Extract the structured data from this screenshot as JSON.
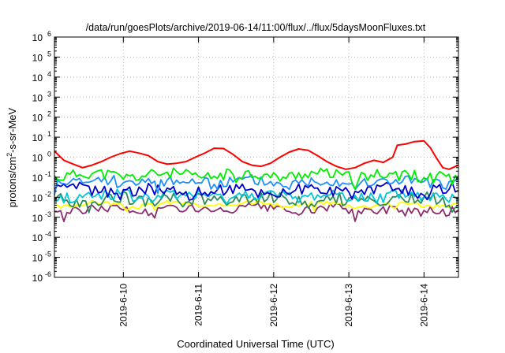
{
  "chart_data": {
    "type": "line",
    "title": "/data/run/goesPlots/archive/2019-06-14/11:00/flux/../flux/5daysMoonFluxes.txt",
    "xlabel": "Coordinated Universal Time (UTC)",
    "ylabel": "protons/cm2-s-sr-MeV",
    "ylabel_parts": {
      "pre": "protons/cm",
      "sup": "2",
      "post": "-s-sr-MeV"
    },
    "yscale": "log",
    "ylim": [
      1e-06,
      1000000.0
    ],
    "y_ticks": [
      {
        "base": "10",
        "exp": "-6"
      },
      {
        "base": "10",
        "exp": "-5"
      },
      {
        "base": "10",
        "exp": "-4"
      },
      {
        "base": "10",
        "exp": "-3"
      },
      {
        "base": "10",
        "exp": "-2"
      },
      {
        "base": "10",
        "exp": "-1"
      },
      {
        "base": "10",
        "exp": "0"
      },
      {
        "base": "10",
        "exp": "1"
      },
      {
        "base": "10",
        "exp": "2"
      },
      {
        "base": "10",
        "exp": "3"
      },
      {
        "base": "10",
        "exp": "4"
      },
      {
        "base": "10",
        "exp": "5"
      },
      {
        "base": "10",
        "exp": "6"
      }
    ],
    "xlim": [
      "2019-06-09 02:00",
      "2019-06-14 11:00"
    ],
    "x_ticks": [
      "2019-6-10",
      "2019-6-11",
      "2019-6-12",
      "2019-6-13",
      "2019-6-14"
    ],
    "grid": true,
    "legend": "none",
    "series": [
      {
        "color": "#ff0000",
        "points": [
          [
            "2019-06-09 02:00",
            2.0
          ],
          [
            "2019-06-09 05:00",
            0.7
          ],
          [
            "2019-06-09 08:00",
            0.45
          ],
          [
            "2019-06-09 11:00",
            0.3
          ],
          [
            "2019-06-09 14:00",
            0.4
          ],
          [
            "2019-06-09 17:00",
            0.6
          ],
          [
            "2019-06-09 20:00",
            1.0
          ],
          [
            "2019-06-09 23:00",
            1.5
          ],
          [
            "2019-06-10 02:00",
            2.0
          ],
          [
            "2019-06-10 05:00",
            1.6
          ],
          [
            "2019-06-10 08:00",
            1.2
          ],
          [
            "2019-06-10 11:00",
            0.6
          ],
          [
            "2019-06-10 14:00",
            0.45
          ],
          [
            "2019-06-10 17:00",
            0.5
          ],
          [
            "2019-06-10 20:00",
            0.6
          ],
          [
            "2019-06-10 23:00",
            1.0
          ],
          [
            "2019-06-11 02:00",
            1.6
          ],
          [
            "2019-06-11 05:00",
            2.8
          ],
          [
            "2019-06-11 08:00",
            2.7
          ],
          [
            "2019-06-11 11:00",
            1.4
          ],
          [
            "2019-06-11 14:00",
            0.6
          ],
          [
            "2019-06-11 17:00",
            0.4
          ],
          [
            "2019-06-11 20:00",
            0.35
          ],
          [
            "2019-06-11 23:00",
            0.5
          ],
          [
            "2019-06-12 02:00",
            1.0
          ],
          [
            "2019-06-12 05:00",
            1.8
          ],
          [
            "2019-06-12 08:00",
            2.6
          ],
          [
            "2019-06-12 11:00",
            2.2
          ],
          [
            "2019-06-12 14:00",
            1.2
          ],
          [
            "2019-06-12 17:00",
            0.6
          ],
          [
            "2019-06-12 20:00",
            0.35
          ],
          [
            "2019-06-12 23:00",
            0.25
          ],
          [
            "2019-06-13 02:00",
            0.3
          ],
          [
            "2019-06-13 05:00",
            0.5
          ],
          [
            "2019-06-13 08:00",
            0.7
          ],
          [
            "2019-06-13 11:00",
            0.55
          ],
          [
            "2019-06-13 14:00",
            1.0
          ],
          [
            "2019-06-13 15:30",
            4.0
          ],
          [
            "2019-06-13 18:00",
            4.5
          ],
          [
            "2019-06-13 21:00",
            6.0
          ],
          [
            "2019-06-14 00:00",
            6.5
          ],
          [
            "2019-06-14 02:00",
            3.0
          ],
          [
            "2019-06-14 04:00",
            0.9
          ],
          [
            "2019-06-14 06:00",
            0.3
          ],
          [
            "2019-06-14 08:00",
            0.25
          ],
          [
            "2019-06-14 11:00",
            0.4
          ]
        ]
      },
      {
        "color": "#00ee00",
        "base": 0.13,
        "amp": 0.5,
        "seed": 11
      },
      {
        "color": "#1e90ff",
        "base": 0.06,
        "amp": 0.55,
        "seed": 23
      },
      {
        "color": "#0000cc",
        "base": 0.022,
        "amp": 0.6,
        "seed": 37
      },
      {
        "color": "#00c8d8",
        "base": 0.012,
        "amp": 0.55,
        "seed": 41
      },
      {
        "color": "#2e8b57",
        "base": 0.008,
        "amp": 0.55,
        "seed": 53
      },
      {
        "color": "#ffff00",
        "base": 0.0045,
        "amp": 0.2,
        "seed": 67
      },
      {
        "color": "#8b2e6b",
        "base": 0.0025,
        "amp": 0.4,
        "seed": 79
      }
    ]
  }
}
